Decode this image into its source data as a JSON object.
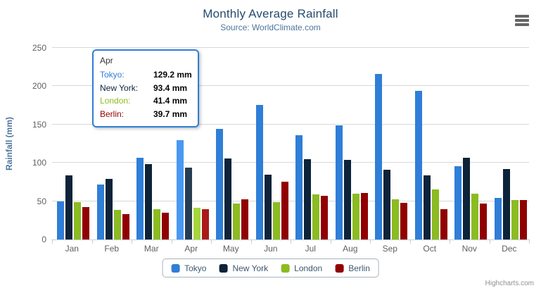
{
  "chart": {
    "title": "Monthly Average Rainfall",
    "subtitle": "Source: WorldClimate.com",
    "y_axis_title": "Rainfall (mm)",
    "credits": "Highcharts.com"
  },
  "tooltip": {
    "header": "Apr",
    "border_color": "#2f7ed8",
    "rows": [
      {
        "name": "Tokyo:",
        "value": "129.2 mm",
        "color": "#2f7ed8"
      },
      {
        "name": "New York:",
        "value": "93.4 mm",
        "color": "#0d233a"
      },
      {
        "name": "London:",
        "value": "41.4 mm",
        "color": "#8bbc21"
      },
      {
        "name": "Berlin:",
        "value": "39.7 mm",
        "color": "#910000"
      }
    ]
  },
  "chart_data": {
    "type": "bar",
    "title": "Monthly Average Rainfall",
    "subtitle": "Source: WorldClimate.com",
    "xlabel": "",
    "ylabel": "Rainfall (mm)",
    "ylim": [
      0,
      250
    ],
    "yticks": [
      0,
      50,
      100,
      150,
      200,
      250
    ],
    "grid": true,
    "legend_position": "bottom",
    "hovered_category": "Apr",
    "categories": [
      "Jan",
      "Feb",
      "Mar",
      "Apr",
      "May",
      "Jun",
      "Jul",
      "Aug",
      "Sep",
      "Oct",
      "Nov",
      "Dec"
    ],
    "series": [
      {
        "name": "Tokyo",
        "color": "#2f7ed8",
        "hover_color": "#4998f2",
        "values": [
          49.9,
          71.5,
          106.4,
          129.2,
          144.0,
          176.0,
          135.6,
          148.5,
          216.4,
          194.1,
          95.6,
          54.4
        ]
      },
      {
        "name": "New York",
        "color": "#0d233a",
        "hover_color": "#273d54",
        "values": [
          83.6,
          78.8,
          98.5,
          93.4,
          106.0,
          84.5,
          105.0,
          104.3,
          91.2,
          83.5,
          106.6,
          92.3
        ]
      },
      {
        "name": "London",
        "color": "#8bbc21",
        "hover_color": "#a5d63b",
        "values": [
          48.9,
          38.8,
          39.3,
          41.4,
          47.0,
          48.3,
          59.0,
          59.6,
          52.4,
          65.2,
          59.3,
          51.2
        ]
      },
      {
        "name": "Berlin",
        "color": "#910000",
        "hover_color": "#ab1a1a",
        "values": [
          42.4,
          33.2,
          34.5,
          39.7,
          52.6,
          75.5,
          57.4,
          60.4,
          47.6,
          39.1,
          46.8,
          51.1
        ]
      }
    ]
  },
  "legend": {
    "items": [
      "Tokyo",
      "New York",
      "London",
      "Berlin"
    ]
  }
}
